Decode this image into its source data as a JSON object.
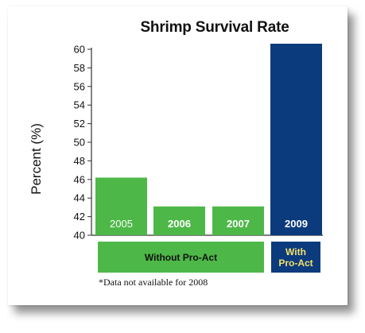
{
  "chart_data": {
    "type": "bar",
    "title": "Shrimp Survival Rate",
    "ylabel": "Percent (%)",
    "xlabel": "",
    "categories": [
      "2005",
      "2006",
      "2007",
      "2009"
    ],
    "values": [
      46.2,
      43.1,
      43.1,
      60.6
    ],
    "bar_colors": [
      "#4db848",
      "#4db848",
      "#4db848",
      "#0b3b7d"
    ],
    "ylim": [
      40,
      60
    ],
    "yticks": [
      40,
      42,
      44,
      46,
      48,
      50,
      52,
      54,
      56,
      58,
      60
    ],
    "grid": false,
    "groups": [
      {
        "label": "Without Pro-Act",
        "color": "#4db848",
        "text_color": "#111111"
      },
      {
        "label": "With Pro-Act",
        "color": "#0b3b7d",
        "text_color": "#f4e06a"
      }
    ],
    "footnote": "*Data not available for 2008"
  }
}
